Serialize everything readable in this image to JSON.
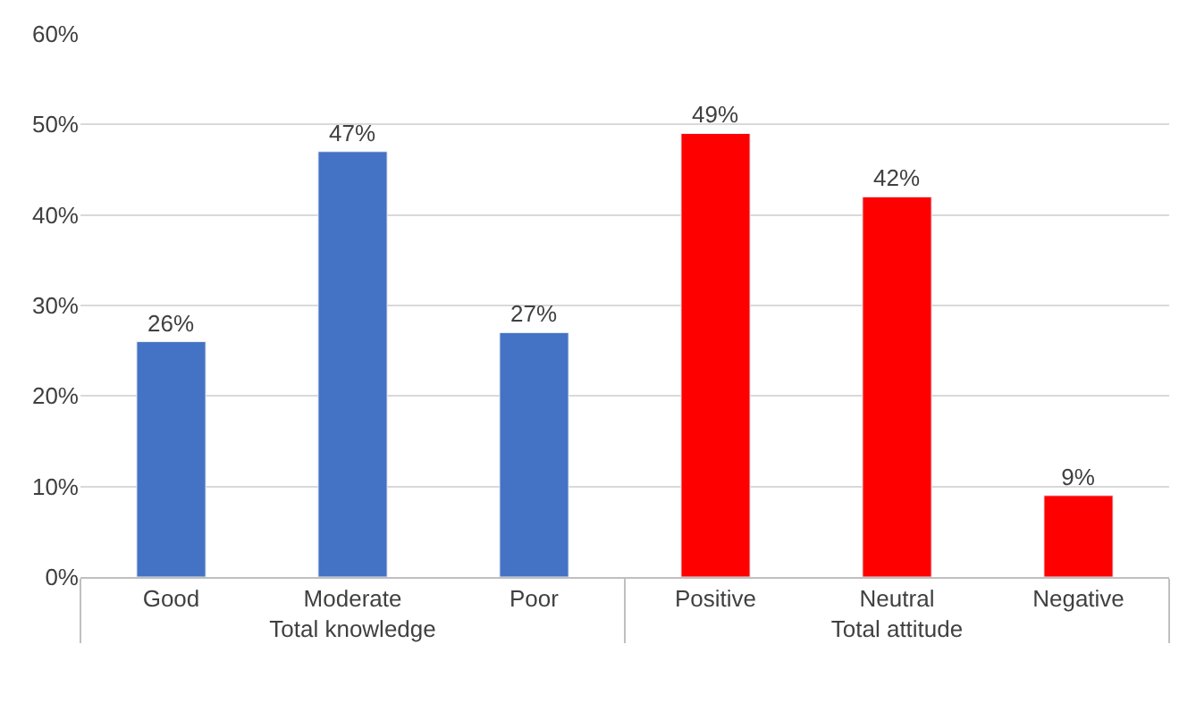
{
  "chart_data": {
    "type": "bar",
    "categories": [
      "Good",
      "Moderate",
      "Poor",
      "Positive",
      "Neutral",
      "Negative"
    ],
    "series": [
      {
        "name": "Total knowledge",
        "color": "#4472c4",
        "values": [
          26,
          47,
          27,
          null,
          null,
          null
        ],
        "value_labels": [
          "26%",
          "47%",
          "27%",
          null,
          null,
          null
        ]
      },
      {
        "name": "Total attitude",
        "color": "#ff0000",
        "values": [
          null,
          null,
          null,
          49,
          42,
          9
        ],
        "value_labels": [
          null,
          null,
          null,
          "49%",
          "42%",
          "9%"
        ]
      }
    ],
    "ylim": [
      0,
      60
    ],
    "yticks": [
      {
        "value": 0,
        "label": "0%"
      },
      {
        "value": 10,
        "label": "10%"
      },
      {
        "value": 20,
        "label": "20%"
      },
      {
        "value": 30,
        "label": "30%"
      },
      {
        "value": 40,
        "label": "40%"
      },
      {
        "value": 50,
        "label": "50%"
      },
      {
        "value": 60,
        "label": "60%"
      }
    ],
    "grid": "y",
    "legend": false
  }
}
